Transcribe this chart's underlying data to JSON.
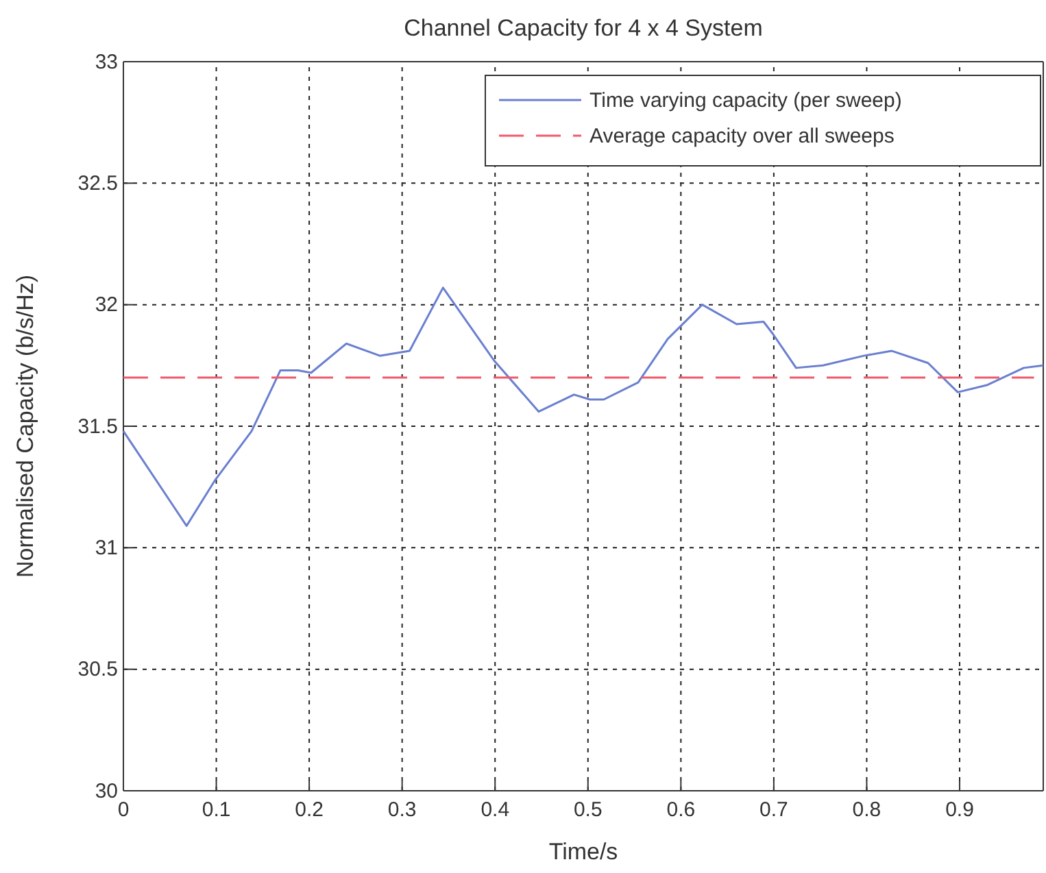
{
  "chart_data": {
    "type": "line",
    "title": "Channel Capacity for 4 x 4 System",
    "xlabel": "Time/s",
    "ylabel": "Normalised Capacity (b/s/Hz)",
    "xlim": [
      0,
      0.99
    ],
    "xticks": [
      0,
      0.1,
      0.2,
      0.3,
      0.4,
      0.5,
      0.6,
      0.7,
      0.8,
      0.9
    ],
    "ylim": [
      30,
      33
    ],
    "yticks": [
      30,
      30.5,
      31,
      31.5,
      32,
      32.5,
      33
    ],
    "grid": true,
    "legend": "top right",
    "series": [
      {
        "name": "Time varying capacity (per sweep)",
        "color": "#6a7fd0",
        "line_style": "solid",
        "x": [
          0,
          0.068,
          0.099,
          0.138,
          0.169,
          0.188,
          0.202,
          0.24,
          0.276,
          0.308,
          0.344,
          0.399,
          0.447,
          0.485,
          0.502,
          0.517,
          0.554,
          0.586,
          0.623,
          0.66,
          0.689,
          0.699,
          0.724,
          0.753,
          0.797,
          0.827,
          0.866,
          0.898,
          0.93,
          0.969,
          0.99
        ],
        "values": [
          31.48,
          31.09,
          31.28,
          31.48,
          31.73,
          31.73,
          31.72,
          31.84,
          31.79,
          31.81,
          32.07,
          31.77,
          31.56,
          31.63,
          31.61,
          31.61,
          31.68,
          31.86,
          32.0,
          31.92,
          31.93,
          31.88,
          31.74,
          31.75,
          31.79,
          31.81,
          31.76,
          31.64,
          31.67,
          31.74,
          31.75
        ]
      },
      {
        "name": "Average capacity over all sweeps",
        "color": "#f05a6a",
        "line_style": "dashed",
        "x": [
          0,
          0.98
        ],
        "values": [
          31.7,
          31.7
        ]
      }
    ]
  }
}
